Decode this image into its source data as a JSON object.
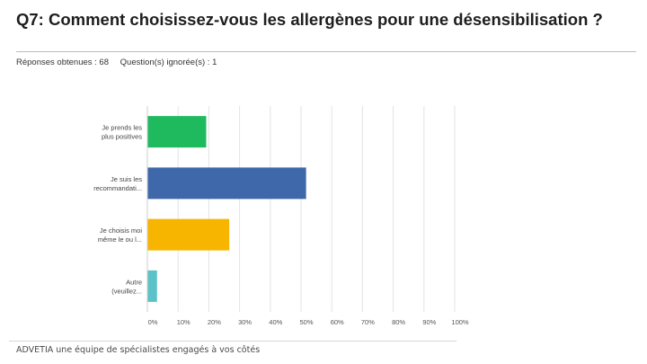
{
  "header": {
    "title": "Q7: Comment choisissez-vous les allergènes pour une désensibilisation ?",
    "responses_label": "Réponses obtenues : 68",
    "skipped_label": "Question(s) ignorée(s) : 1"
  },
  "footer": {
    "text": "ADVETIA une équipe de spécialistes engagés à vos côtés"
  },
  "chart_data": {
    "type": "bar",
    "orientation": "horizontal",
    "categories": [
      [
        "Je prends les",
        "plus positives"
      ],
      [
        "Je suis les",
        "recommandati..."
      ],
      [
        "Je choisis moi",
        "même le ou l..."
      ],
      [
        "Autre",
        "(veuillez..."
      ]
    ],
    "values": [
      19,
      51.5,
      26.5,
      3
    ],
    "colors": [
      "#1fba5e",
      "#3f68aa",
      "#f7b500",
      "#5bc2c7"
    ],
    "xlim": [
      0,
      100
    ],
    "xticks": [
      "0%",
      "10%",
      "20%",
      "30%",
      "40%",
      "50%",
      "60%",
      "70%",
      "80%",
      "90%",
      "100%"
    ],
    "grid": true,
    "legend": "none"
  }
}
